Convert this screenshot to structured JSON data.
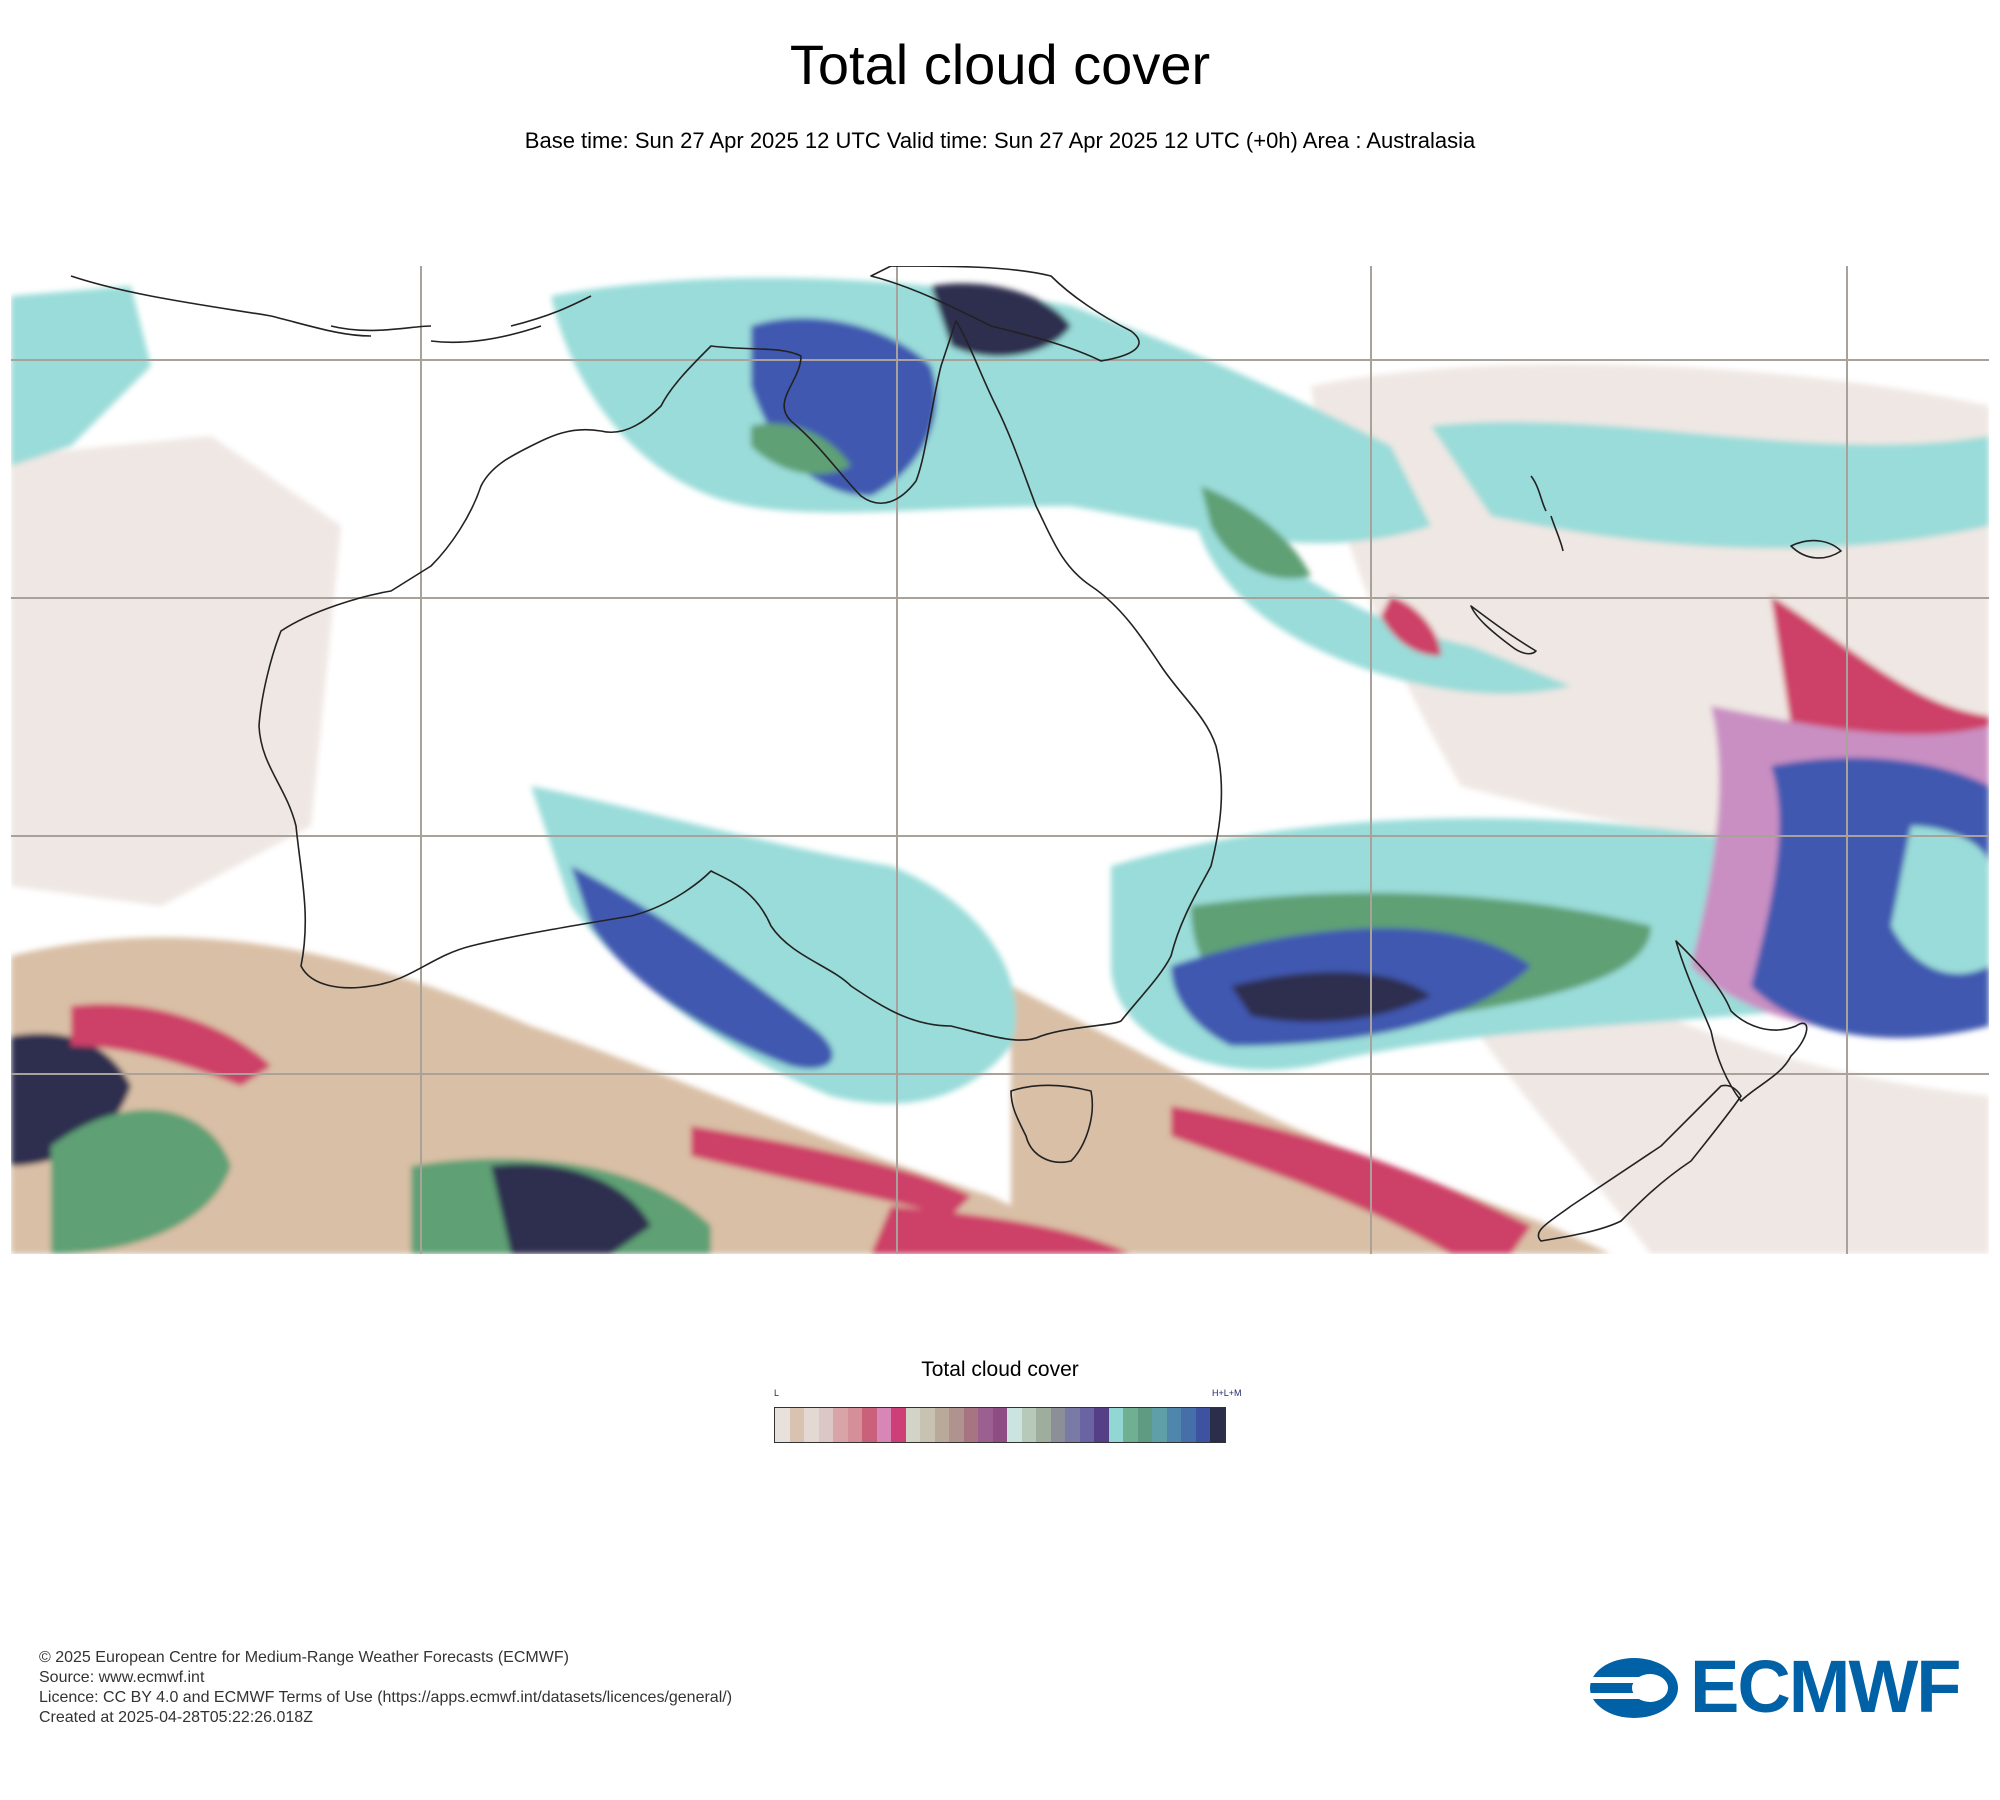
{
  "title": "Total cloud cover",
  "subtitle": "Base time: Sun 27 Apr 2025 12 UTC Valid time: Sun 27 Apr 2025 12 UTC (+0h) Area : Australasia",
  "legend": {
    "title": "Total cloud cover",
    "low_label": "L",
    "high_label": "H+L+M",
    "colors": [
      "#e8e0da",
      "#d9c3b0",
      "#e4d8d3",
      "#dcc7c7",
      "#d9a4a8",
      "#d48f99",
      "#c9617a",
      "#d886b7",
      "#cd3f76",
      "#d3d3c8",
      "#c7c2b1",
      "#b9a99a",
      "#b0928f",
      "#a77482",
      "#9c6090",
      "#8f4d86",
      "#cce4df",
      "#b7c9b8",
      "#9fae9c",
      "#8c8f98",
      "#7a7aa7",
      "#6b64a3",
      "#553f86",
      "#93d7d4",
      "#6fb092",
      "#5f9a82",
      "#5fa0a8",
      "#4e87ab",
      "#466ea8",
      "#3d52a0",
      "#2b2e4a"
    ]
  },
  "map": {
    "area": "Australasia",
    "field": "Total cloud cover",
    "colors": {
      "ocean_clear": "#ffffff",
      "low_haze": "#efe7e3",
      "low_tan": "#d9bfa6",
      "low_pink": "#d87aa5",
      "low_red": "#cd3f68",
      "mid_cyan": "#9adcd9",
      "mid_green": "#5fa075",
      "high_blue": "#3f58b0",
      "high_navy": "#2d2e4f",
      "mauve": "#c98fc2",
      "coast": "#222222",
      "graticule": "#a8a29a"
    }
  },
  "footer": {
    "copyright": "© 2025 European Centre for Medium-Range Weather Forecasts (ECMWF)",
    "source": "Source: www.ecmwf.int",
    "licence": "Licence: CC BY 4.0 and ECMWF Terms of Use (https://apps.ecmwf.int/datasets/licences/general/)",
    "created": "Created at 2025-04-28T05:22:26.018Z"
  },
  "logo": {
    "text": "ECMWF",
    "color": "#0061a6"
  }
}
